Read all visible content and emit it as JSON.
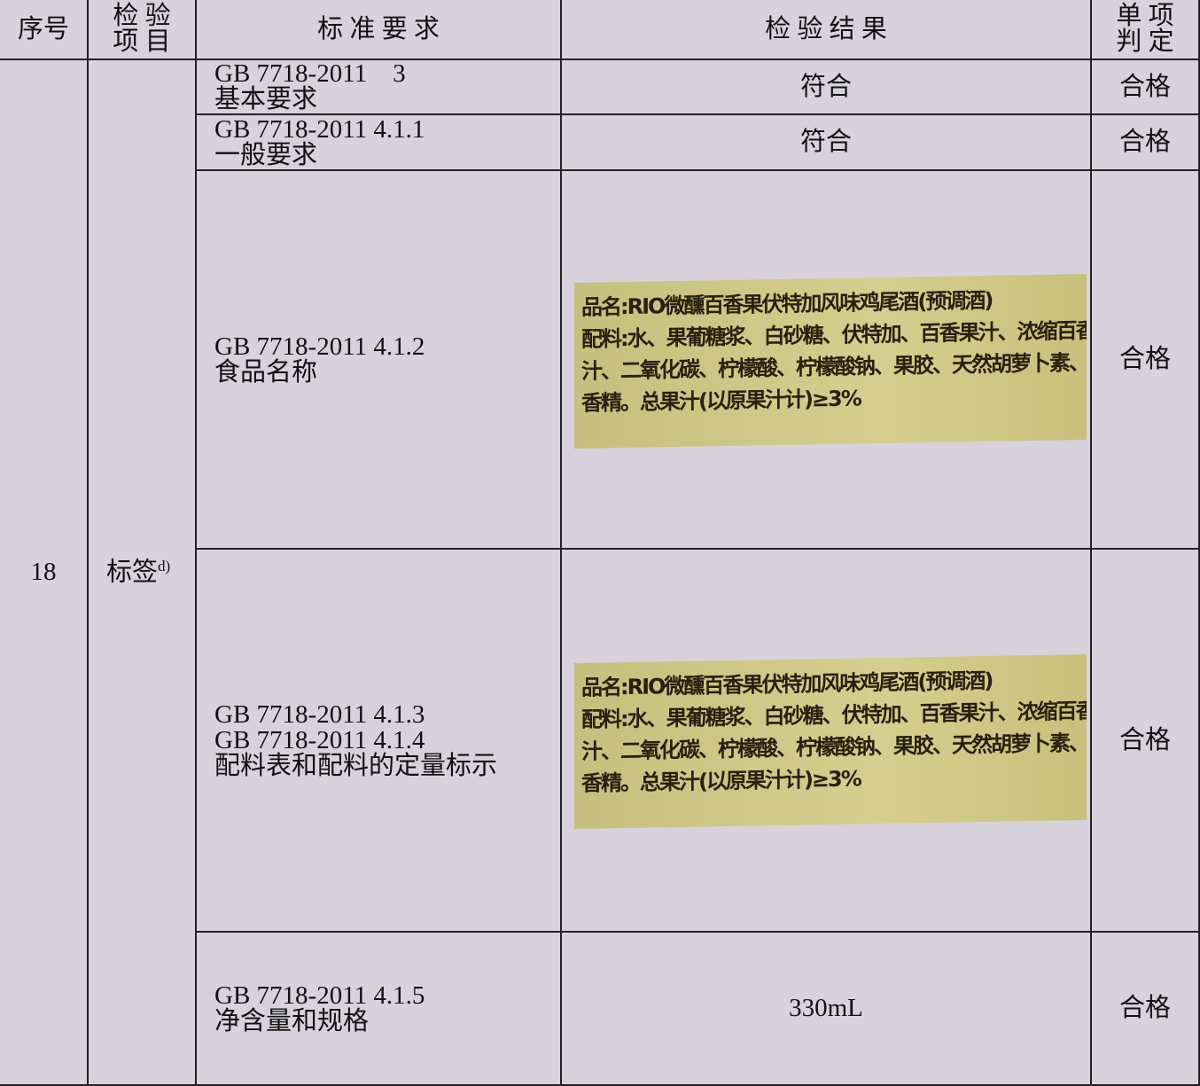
{
  "table": {
    "header": {
      "index": "序号",
      "item": [
        "检 验",
        "项 目"
      ],
      "standard": "标 准 要 求",
      "result": "检 验 结 果",
      "verdict": [
        "单 项",
        "判 定"
      ]
    },
    "index": "18",
    "item": {
      "text": "标签",
      "note": "d)"
    },
    "rows": [
      {
        "standard": [
          "GB 7718-2011　3",
          "基本要求"
        ],
        "result": "符合",
        "verdict": "合格"
      },
      {
        "standard": [
          "GB 7718-2011 4.1.1",
          "一般要求"
        ],
        "result": "符合",
        "verdict": "合格"
      },
      {
        "standard": [
          "GB 7718-2011 4.1.2",
          "食品名称"
        ],
        "label_image": [
          "品名:RIO微醺百香果伏特加风味鸡尾酒(预调酒)",
          "配料:水、果葡糖浆、白砂糖、伏特加、百香果汁、浓缩百香果",
          "汁、二氧化碳、柠檬酸、柠檬酸钠、果胶、天然胡萝卜素、食用",
          "香精。总果汁(以原果汁计)≥3%"
        ],
        "verdict": "合格"
      },
      {
        "standard": [
          "GB 7718-2011 4.1.3",
          "GB 7718-2011 4.1.4",
          "配料表和配料的定量标示"
        ],
        "label_image": [
          "品名:RIO微醺百香果伏特加风味鸡尾酒(预调酒)",
          "配料:水、果葡糖浆、白砂糖、伏特加、百香果汁、浓缩百香果",
          "汁、二氧化碳、柠檬酸、柠檬酸钠、果胶、天然胡萝卜素、食用",
          "香精。总果汁(以原果汁计)≥3%"
        ],
        "verdict": "合格"
      },
      {
        "standard": [
          "GB 7718-2011 4.1.5",
          "净含量和规格"
        ],
        "result": "330mL",
        "verdict": "合格"
      }
    ]
  }
}
